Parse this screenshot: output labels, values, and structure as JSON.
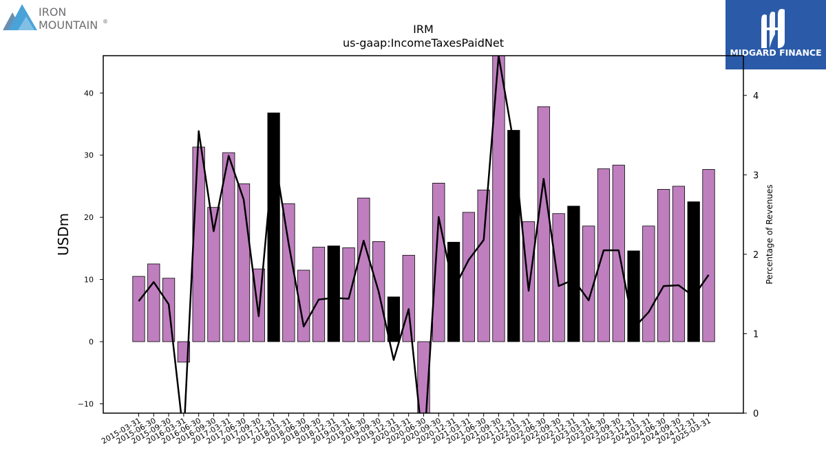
{
  "brand_left": {
    "line1": "IRON",
    "line2": "MOUNTAIN",
    "mark": "®"
  },
  "brand_right": {
    "name": "MIDGARD FINANCE"
  },
  "chart_data": {
    "type": "bar",
    "title": "IRM",
    "subtitle": "us-gaap:IncomeTaxesPaidNet",
    "ylabel": "USDm",
    "y2label": "Percentage of Revenues",
    "ylim": [
      -11.5,
      46
    ],
    "y2lim": [
      0,
      4.5
    ],
    "yticks": [
      -10,
      0,
      10,
      20,
      30,
      40
    ],
    "y2ticks": [
      0,
      1,
      2,
      3,
      4
    ],
    "grid": false,
    "colors": {
      "bar": "#bf7fbf",
      "bar_q4": "#000000",
      "line": "#000000"
    },
    "categories": [
      "2015-03-31",
      "2015-06-30",
      "2015-09-30",
      "2016-03-31",
      "2016-06-30",
      "2016-09-30",
      "2017-03-31",
      "2017-06-30",
      "2017-09-30",
      "2017-12-31",
      "2018-03-31",
      "2018-06-30",
      "2018-09-30",
      "2018-12-31",
      "2019-03-31",
      "2019-06-30",
      "2019-09-30",
      "2019-12-31",
      "2020-03-31",
      "2020-06-30",
      "2020-09-30",
      "2020-12-31",
      "2021-03-31",
      "2021-06-30",
      "2021-09-30",
      "2021-12-31",
      "2022-03-31",
      "2022-06-30",
      "2022-09-30",
      "2022-12-31",
      "2023-03-31",
      "2023-06-30",
      "2023-09-30",
      "2023-12-31",
      "2024-03-31",
      "2024-06-30",
      "2024-09-30",
      "2024-12-31",
      "2025-03-31"
    ],
    "series": [
      {
        "type": "bar",
        "axis": "left",
        "values": [
          10.5,
          12.5,
          10.2,
          -3.3,
          31.3,
          21.6,
          30.4,
          25.4,
          11.7,
          36.8,
          22.2,
          11.5,
          15.2,
          15.4,
          15.1,
          23.1,
          16.1,
          7.2,
          13.9,
          -16.0,
          25.5,
          16.0,
          20.8,
          24.4,
          50.0,
          34.0,
          19.3,
          37.8,
          20.6,
          21.8,
          18.6,
          27.8,
          28.4,
          14.6,
          18.6,
          24.5,
          25.0,
          22.5,
          27.7
        ],
        "highlight": [
          false,
          false,
          false,
          false,
          false,
          false,
          false,
          false,
          false,
          true,
          false,
          false,
          false,
          true,
          false,
          false,
          false,
          true,
          false,
          false,
          false,
          true,
          false,
          false,
          false,
          true,
          false,
          false,
          false,
          true,
          false,
          false,
          false,
          true,
          false,
          false,
          false,
          true,
          false
        ]
      },
      {
        "type": "line",
        "axis": "right",
        "values": [
          1.41,
          1.65,
          1.37,
          -0.3,
          3.55,
          2.29,
          3.24,
          2.69,
          1.22,
          3.3,
          2.13,
          1.09,
          1.43,
          1.45,
          1.44,
          2.17,
          1.53,
          0.67,
          1.31,
          -0.5,
          2.47,
          1.56,
          1.93,
          2.18,
          4.5,
          3.4,
          1.54,
          2.95,
          1.6,
          1.68,
          1.42,
          2.05,
          2.05,
          1.07,
          1.27,
          1.6,
          1.61,
          1.47,
          1.74
        ]
      }
    ]
  }
}
